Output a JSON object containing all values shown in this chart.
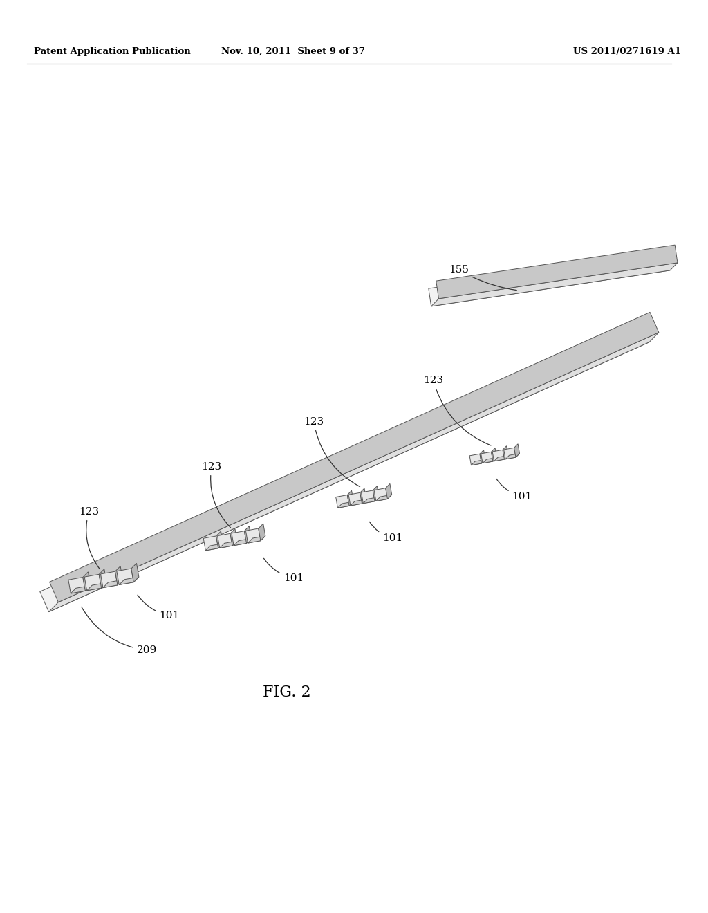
{
  "background_color": "#ffffff",
  "header_left": "Patent Application Publication",
  "header_center": "Nov. 10, 2011  Sheet 9 of 37",
  "header_right": "US 2011/0271619 A1",
  "figure_label": "FIG. 2",
  "line_color": "#555555",
  "fill_color_light": "#dddddd",
  "fill_color_medium": "#aaaaaa",
  "fill_color_dark": "#888888"
}
